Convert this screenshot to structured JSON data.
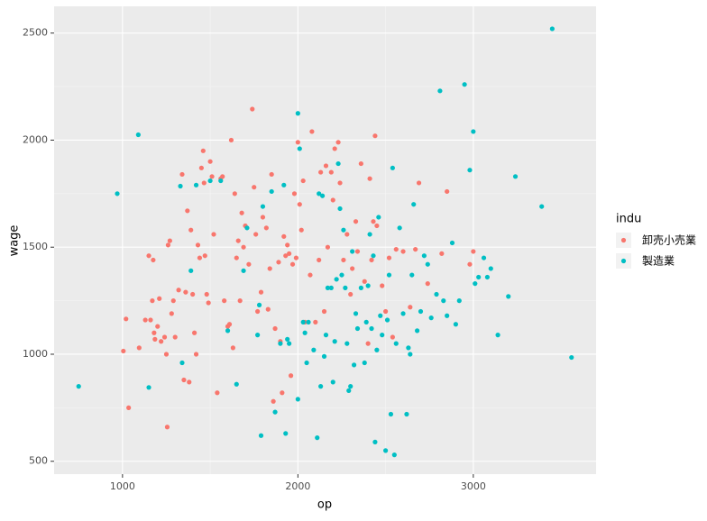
{
  "chart_data": {
    "type": "scatter",
    "x_label": "op",
    "y_label": "wage",
    "legend_title": "indu",
    "legend_position": "right",
    "grid": true,
    "xlim": [
      610,
      3700
    ],
    "ylim": [
      440,
      2625
    ],
    "xticks": [
      1000,
      2000,
      3000
    ],
    "yticks": [
      500,
      1000,
      1500,
      2000,
      2500
    ],
    "series": [
      {
        "name": "卸売小売業",
        "color": "#F8766D",
        "x": [
          1005,
          1020,
          1035,
          1095,
          1130,
          1150,
          1160,
          1170,
          1175,
          1180,
          1185,
          1200,
          1210,
          1220,
          1240,
          1250,
          1255,
          1260,
          1270,
          1280,
          1290,
          1300,
          1320,
          1340,
          1350,
          1360,
          1370,
          1380,
          1390,
          1400,
          1410,
          1420,
          1430,
          1440,
          1450,
          1460,
          1465,
          1470,
          1480,
          1490,
          1500,
          1510,
          1520,
          1540,
          1560,
          1570,
          1580,
          1600,
          1610,
          1620,
          1630,
          1640,
          1650,
          1660,
          1670,
          1680,
          1690,
          1700,
          1720,
          1740,
          1750,
          1760,
          1770,
          1790,
          1800,
          1820,
          1830,
          1840,
          1850,
          1860,
          1870,
          1890,
          1900,
          1910,
          1920,
          1930,
          1940,
          1950,
          1960,
          1970,
          1980,
          1990,
          2000,
          2010,
          2020,
          2030,
          2040,
          2070,
          2080,
          2100,
          2120,
          2130,
          2150,
          2160,
          2170,
          2190,
          2200,
          2210,
          2230,
          2240,
          2260,
          2280,
          2300,
          2310,
          2330,
          2340,
          2360,
          2380,
          2400,
          2410,
          2420,
          2430,
          2440,
          2450,
          2480,
          2500,
          2520,
          2540,
          2560,
          2600,
          2640,
          2670,
          2690,
          2740,
          2820,
          2850,
          2980,
          3000
        ],
        "values": [
          1015,
          1165,
          750,
          1030,
          1160,
          1460,
          1160,
          1250,
          1440,
          1100,
          1070,
          1130,
          1260,
          1060,
          1080,
          1000,
          660,
          1510,
          1530,
          1190,
          1250,
          1080,
          1300,
          1840,
          880,
          1290,
          1670,
          870,
          1580,
          1280,
          1100,
          1000,
          1510,
          1450,
          1870,
          1950,
          1800,
          1460,
          1280,
          1240,
          1900,
          1830,
          1560,
          820,
          1820,
          1830,
          1250,
          1130,
          1140,
          2000,
          1030,
          1750,
          1450,
          1530,
          1250,
          1660,
          1500,
          1600,
          1420,
          2145,
          1780,
          1560,
          1200,
          1290,
          1640,
          1590,
          1210,
          1400,
          1840,
          780,
          1120,
          1430,
          1060,
          820,
          1550,
          1460,
          1510,
          1470,
          900,
          1420,
          1750,
          1450,
          1990,
          1700,
          1580,
          1810,
          1150,
          1370,
          2040,
          1150,
          1440,
          1850,
          1200,
          1880,
          1500,
          1850,
          1720,
          1960,
          1990,
          1800,
          1440,
          1560,
          1280,
          1400,
          1620,
          1480,
          1890,
          1340,
          1050,
          1820,
          1440,
          1620,
          2020,
          1600,
          1320,
          1200,
          1450,
          1080,
          1490,
          1480,
          1220,
          1490,
          1800,
          1330,
          1470,
          1760,
          1420,
          1480
        ]
      },
      {
        "name": "製造業",
        "color": "#00BFC4",
        "x": [
          750,
          970,
          1090,
          1150,
          1330,
          1340,
          1390,
          1420,
          1500,
          1560,
          1600,
          1650,
          1690,
          1710,
          1770,
          1780,
          1790,
          1800,
          1850,
          1870,
          1900,
          1920,
          1930,
          1940,
          1950,
          2000,
          2000,
          2010,
          2030,
          2040,
          2050,
          2060,
          2090,
          2110,
          2120,
          2130,
          2140,
          2150,
          2160,
          2170,
          2190,
          2200,
          2210,
          2220,
          2230,
          2240,
          2250,
          2260,
          2270,
          2280,
          2290,
          2300,
          2310,
          2320,
          2330,
          2340,
          2360,
          2380,
          2390,
          2400,
          2410,
          2420,
          2430,
          2440,
          2450,
          2460,
          2470,
          2480,
          2500,
          2510,
          2520,
          2530,
          2540,
          2550,
          2560,
          2580,
          2600,
          2620,
          2630,
          2640,
          2650,
          2660,
          2680,
          2700,
          2720,
          2740,
          2760,
          2790,
          2810,
          2830,
          2850,
          2880,
          2900,
          2920,
          2950,
          2980,
          3000,
          3010,
          3030,
          3060,
          3080,
          3100,
          3140,
          3200,
          3240,
          3390,
          3450,
          3560
        ],
        "values": [
          850,
          1750,
          2025,
          845,
          1785,
          960,
          1390,
          1790,
          1810,
          1810,
          1110,
          860,
          1390,
          1590,
          1090,
          1230,
          620,
          1690,
          1760,
          730,
          1050,
          1790,
          630,
          1070,
          1050,
          790,
          2125,
          1960,
          1150,
          1100,
          960,
          1150,
          1020,
          610,
          1750,
          850,
          1740,
          990,
          1090,
          1310,
          1310,
          870,
          1060,
          1350,
          1890,
          1680,
          1370,
          1580,
          1310,
          1050,
          830,
          850,
          1480,
          950,
          1190,
          1120,
          1310,
          960,
          1150,
          1320,
          1560,
          1120,
          1460,
          590,
          1020,
          1640,
          1180,
          1090,
          550,
          1160,
          1370,
          720,
          1870,
          530,
          1050,
          1590,
          1190,
          720,
          1030,
          1000,
          1370,
          1700,
          1110,
          1200,
          1460,
          1420,
          1170,
          1280,
          2230,
          1250,
          1180,
          1520,
          1140,
          1250,
          2260,
          1860,
          2040,
          1330,
          1360,
          1450,
          1360,
          1400,
          1090,
          1270,
          1830,
          1690,
          2520,
          985
        ]
      }
    ]
  }
}
